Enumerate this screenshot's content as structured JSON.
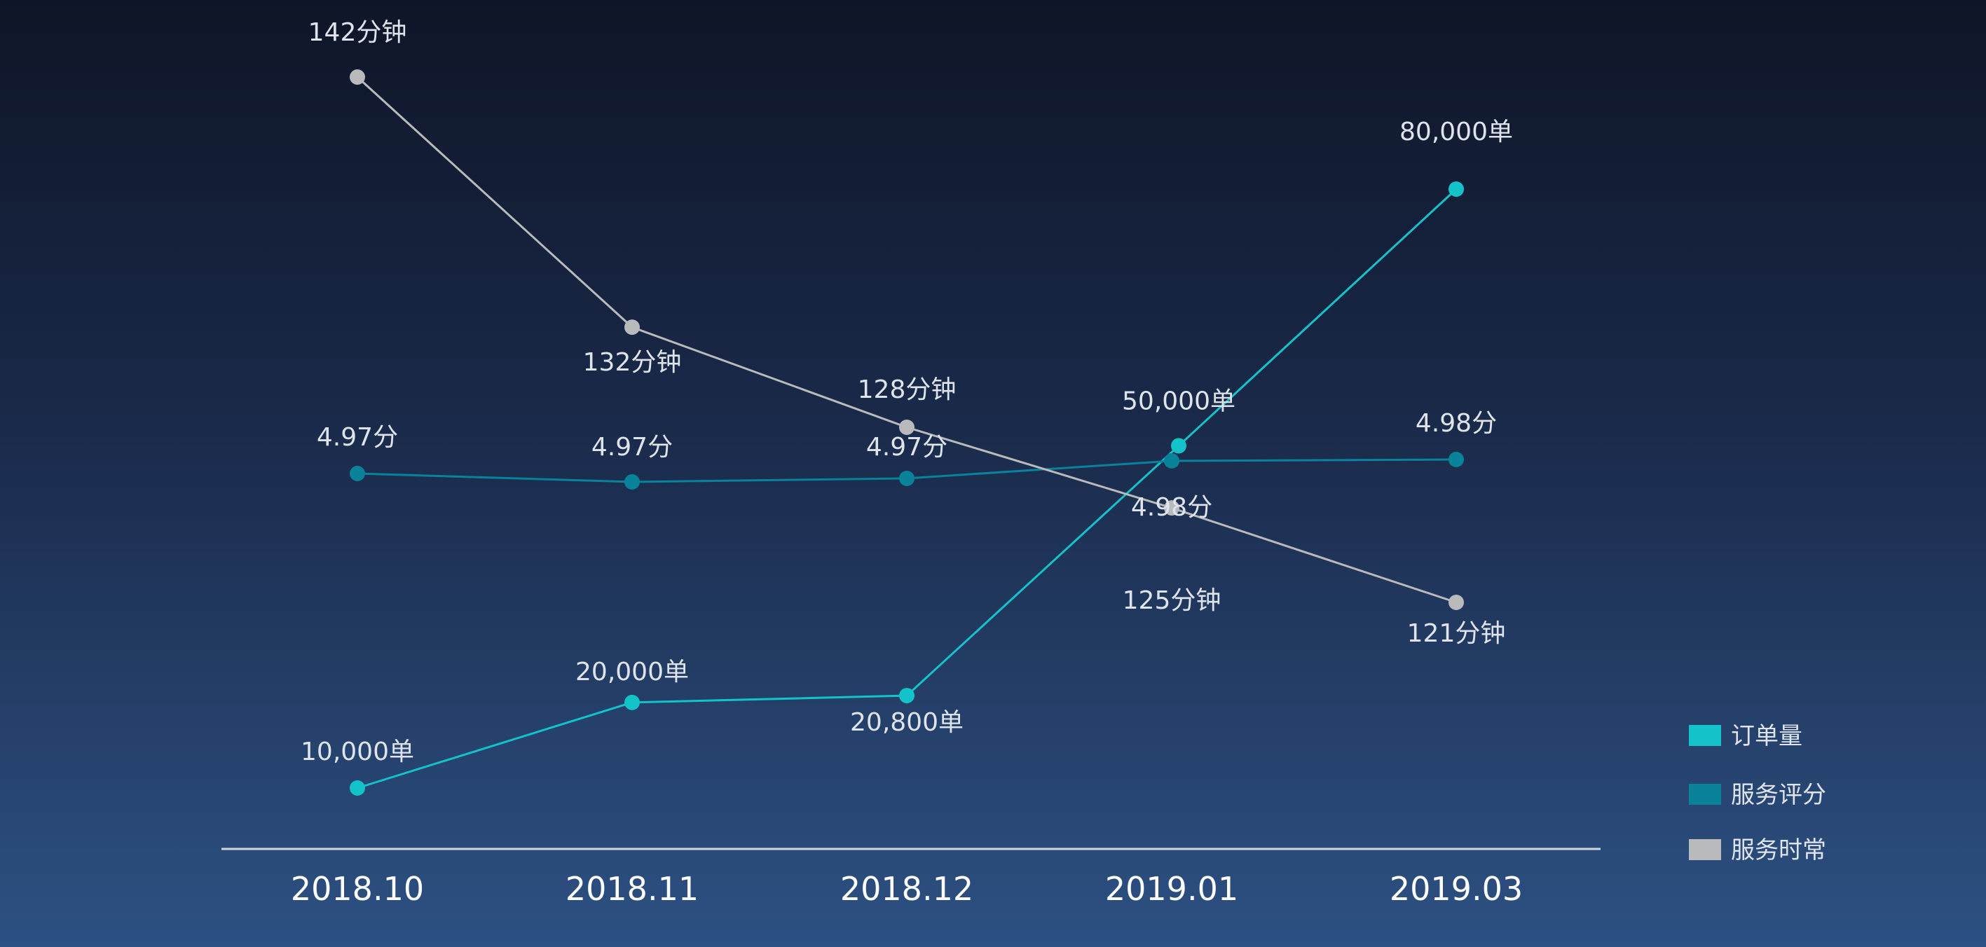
{
  "chart_data": {
    "type": "line",
    "categories": [
      "2018.10",
      "2018.11",
      "2018.12",
      "2019.01",
      "2019.03"
    ],
    "legend": {
      "placement": "right-bottom"
    },
    "grid": false,
    "series": [
      {
        "name": "订单量",
        "color": "#13c3c9",
        "values": [
          10000,
          20000,
          20800,
          50000,
          80000
        ],
        "labels": [
          "10,000单",
          "20,000单",
          "20,800单",
          "50,000单",
          "80,000单"
        ]
      },
      {
        "name": "服务评分",
        "color": "#0a829a",
        "values": [
          4.97,
          4.97,
          4.97,
          4.98,
          4.98
        ],
        "labels": [
          "4.97分",
          "4.97分",
          "4.97分",
          "4.98分",
          "4.98分"
        ]
      },
      {
        "name": "服务时常",
        "color": "#b9babc",
        "values": [
          142,
          132,
          128,
          125,
          121
        ],
        "labels": [
          "142分钟",
          "132分钟",
          "128分钟",
          "125分钟",
          "121分钟"
        ]
      }
    ]
  }
}
